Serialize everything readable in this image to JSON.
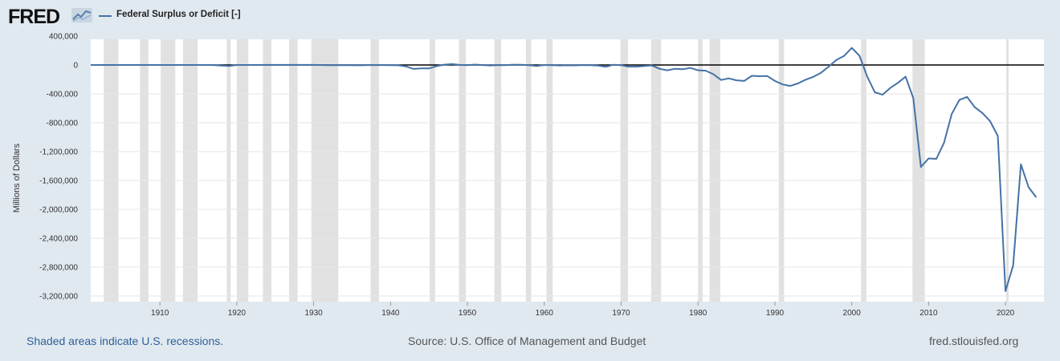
{
  "header": {
    "logo_text": "FRED",
    "series_name": "Federal Surplus or Deficit [-]"
  },
  "colors": {
    "background": "#e1e9f0",
    "plot_background": "#ffffff",
    "series_line": "#4572a7",
    "recession_shade": "#e1e1e1",
    "zero_line": "#000000",
    "grid": "#e6e6e6"
  },
  "chart_data": {
    "type": "line",
    "title": "",
    "xlabel": "",
    "ylabel": "Millions of Dollars",
    "xlim": [
      1901,
      2025
    ],
    "ylim": [
      -3250000,
      400000
    ],
    "grid": true,
    "legend_position": "top-left",
    "y_ticks": [
      400000,
      0,
      -400000,
      -800000,
      -1200000,
      -1600000,
      -2000000,
      -2400000,
      -2800000,
      -3200000
    ],
    "y_tick_labels": [
      "400,000",
      "0",
      "-400,000",
      "-800,000",
      "-1,200,000",
      "-1,600,000",
      "-2,000,000",
      "-2,400,000",
      "-2,800,000",
      "-3,200,000"
    ],
    "x_ticks": [
      1910,
      1920,
      1930,
      1940,
      1950,
      1960,
      1970,
      1980,
      1990,
      2000,
      2010,
      2020
    ],
    "x_tick_labels": [
      "1910",
      "1920",
      "1930",
      "1940",
      "1950",
      "1960",
      "1970",
      "1980",
      "1990",
      "2000",
      "2010",
      "2020"
    ],
    "recessions": [
      [
        1902.7,
        1904.6
      ],
      [
        1907.4,
        1908.5
      ],
      [
        1910.1,
        1912.0
      ],
      [
        1913.0,
        1914.9
      ],
      [
        1918.7,
        1919.2
      ],
      [
        1920.0,
        1921.5
      ],
      [
        1923.4,
        1924.5
      ],
      [
        1926.8,
        1927.9
      ],
      [
        1929.7,
        1933.2
      ],
      [
        1937.4,
        1938.5
      ],
      [
        1945.1,
        1945.8
      ],
      [
        1948.9,
        1949.8
      ],
      [
        1953.5,
        1954.4
      ],
      [
        1957.6,
        1958.3
      ],
      [
        1960.3,
        1961.1
      ],
      [
        1969.9,
        1970.9
      ],
      [
        1973.9,
        1975.2
      ],
      [
        1980.0,
        1980.6
      ],
      [
        1981.5,
        1982.9
      ],
      [
        1990.5,
        1991.2
      ],
      [
        2001.2,
        2001.9
      ],
      [
        2007.9,
        2009.5
      ],
      [
        2020.1,
        2020.4
      ]
    ],
    "series": [
      {
        "name": "Federal Surplus or Deficit [-]",
        "color": "#4572a7",
        "points": [
          [
            1901,
            63
          ],
          [
            1905,
            -23
          ],
          [
            1910,
            -18
          ],
          [
            1915,
            -63
          ],
          [
            1917,
            -853
          ],
          [
            1918,
            -9032
          ],
          [
            1919,
            -13363
          ],
          [
            1920,
            291
          ],
          [
            1921,
            509
          ],
          [
            1925,
            717
          ],
          [
            1930,
            738
          ],
          [
            1932,
            -2735
          ],
          [
            1934,
            -3586
          ],
          [
            1936,
            -4304
          ],
          [
            1938,
            -89
          ],
          [
            1940,
            -2920
          ],
          [
            1941,
            -4941
          ],
          [
            1942,
            -20503
          ],
          [
            1943,
            -54554
          ],
          [
            1944,
            -47557
          ],
          [
            1945,
            -47553
          ],
          [
            1946,
            -15936
          ],
          [
            1947,
            4018
          ],
          [
            1948,
            11796
          ],
          [
            1949,
            580
          ],
          [
            1950,
            -3119
          ],
          [
            1951,
            6102
          ],
          [
            1952,
            -1519
          ],
          [
            1953,
            -6493
          ],
          [
            1954,
            -1154
          ],
          [
            1955,
            -2993
          ],
          [
            1956,
            3947
          ],
          [
            1957,
            3412
          ],
          [
            1958,
            -2769
          ],
          [
            1959,
            -12849
          ],
          [
            1960,
            301
          ],
          [
            1961,
            -3335
          ],
          [
            1962,
            -7146
          ],
          [
            1963,
            -4756
          ],
          [
            1964,
            -5915
          ],
          [
            1965,
            -1411
          ],
          [
            1966,
            -3698
          ],
          [
            1967,
            -8643
          ],
          [
            1968,
            -25161
          ],
          [
            1969,
            3242
          ],
          [
            1970,
            -2842
          ],
          [
            1971,
            -23033
          ],
          [
            1972,
            -23373
          ],
          [
            1973,
            -14908
          ],
          [
            1974,
            -6135
          ],
          [
            1975,
            -53242
          ],
          [
            1976,
            -73732
          ],
          [
            1977,
            -53659
          ],
          [
            1978,
            -59185
          ],
          [
            1979,
            -40726
          ],
          [
            1980,
            -73830
          ],
          [
            1981,
            -78968
          ],
          [
            1982,
            -127977
          ],
          [
            1983,
            -207802
          ],
          [
            1984,
            -185367
          ],
          [
            1985,
            -212308
          ],
          [
            1986,
            -221227
          ],
          [
            1987,
            -149730
          ],
          [
            1988,
            -155178
          ],
          [
            1989,
            -152639
          ],
          [
            1990,
            -221036
          ],
          [
            1991,
            -269238
          ],
          [
            1992,
            -290321
          ],
          [
            1993,
            -255051
          ],
          [
            1994,
            -203186
          ],
          [
            1995,
            -163952
          ],
          [
            1996,
            -107431
          ],
          [
            1997,
            -21884
          ],
          [
            1998,
            69270
          ],
          [
            1999,
            125610
          ],
          [
            2000,
            236241
          ],
          [
            2001,
            128236
          ],
          [
            2002,
            -157758
          ],
          [
            2003,
            -377585
          ],
          [
            2004,
            -412727
          ],
          [
            2005,
            -318346
          ],
          [
            2006,
            -248181
          ],
          [
            2007,
            -160701
          ],
          [
            2008,
            -458553
          ],
          [
            2009,
            -1412688
          ],
          [
            2010,
            -1294373
          ],
          [
            2011,
            -1299599
          ],
          [
            2012,
            -1076573
          ],
          [
            2013,
            -679775
          ],
          [
            2014,
            -484597
          ],
          [
            2015,
            -441960
          ],
          [
            2016,
            -584651
          ],
          [
            2017,
            -665446
          ],
          [
            2018,
            -779137
          ],
          [
            2019,
            -983592
          ],
          [
            2020,
            -3132460
          ],
          [
            2021,
            -2775306
          ],
          [
            2022,
            -1375927
          ],
          [
            2023,
            -1693722
          ],
          [
            2024,
            -1832817
          ]
        ]
      }
    ]
  },
  "footer": {
    "recession_note": "Shaded areas indicate U.S. recessions.",
    "source": "Source: U.S. Office of Management and Budget",
    "site": "fred.stlouisfed.org"
  }
}
